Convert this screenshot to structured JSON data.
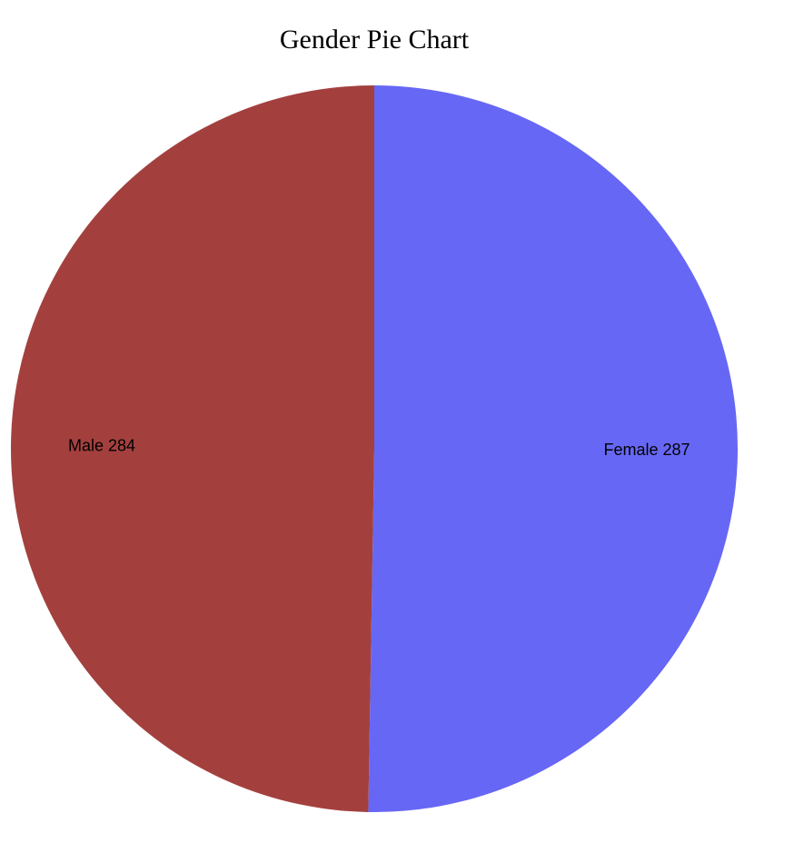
{
  "chart_data": {
    "type": "pie",
    "title": "Gender Pie Chart",
    "slices": [
      {
        "label": "Female",
        "value": 287,
        "color": "#6767f5"
      },
      {
        "label": "Male",
        "value": 284,
        "color": "#a3403e"
      }
    ]
  }
}
